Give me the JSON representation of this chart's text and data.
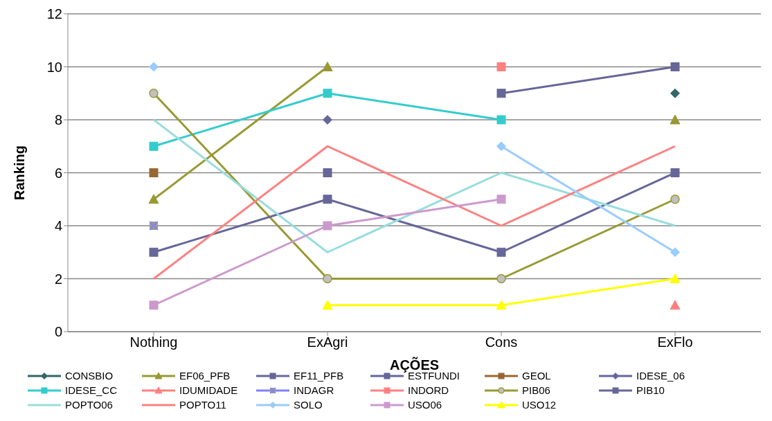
{
  "chart_data": {
    "type": "line",
    "xlabel": "AÇÕES",
    "ylabel": "Ranking",
    "categories": [
      "Nothing",
      "ExAgri",
      "Cons",
      "ExFlo"
    ],
    "ylim": [
      0,
      12
    ],
    "yticks": [
      0,
      2,
      4,
      6,
      8,
      10,
      12
    ],
    "grid": "y",
    "legend": "bottom",
    "line_style": "solid",
    "series": [
      {
        "name": "CONSBIO",
        "color": "#336666",
        "marker": "diamond",
        "values": [
          null,
          null,
          null,
          9
        ]
      },
      {
        "name": "EF06_PFB",
        "color": "#999933",
        "marker": "triangle",
        "values": [
          5,
          10,
          null,
          8
        ]
      },
      {
        "name": "EF11_PFB",
        "color": "#666699",
        "marker": "square",
        "values": [
          null,
          6,
          null,
          null
        ]
      },
      {
        "name": "ESTFUNDI",
        "color": "#666699",
        "marker": "square",
        "values": [
          null,
          null,
          9,
          10
        ]
      },
      {
        "name": "GEOL",
        "color": "#996633",
        "marker": "square",
        "values": [
          6,
          null,
          null,
          null
        ]
      },
      {
        "name": "IDESE_06",
        "color": "#666699",
        "marker": "diamond",
        "values": [
          null,
          8,
          null,
          null
        ]
      },
      {
        "name": "IDESE_CC",
        "color": "#33cccc",
        "marker": "square",
        "values": [
          7,
          9,
          8,
          null
        ]
      },
      {
        "name": "IDUMIDADE",
        "color": "#ff8080",
        "marker": "triangle",
        "values": [
          null,
          null,
          null,
          1
        ]
      },
      {
        "name": "INDAGR",
        "color": "#8080ff",
        "marker": "cross",
        "values": [
          4,
          null,
          null,
          null
        ]
      },
      {
        "name": "INDORD",
        "color": "#ff8080",
        "marker": "square",
        "values": [
          null,
          null,
          10,
          null
        ]
      },
      {
        "name": "PIB06",
        "color": "#999933",
        "marker": "circle",
        "values": [
          9,
          2,
          2,
          5
        ]
      },
      {
        "name": "PIB10",
        "color": "#666699",
        "marker": "square",
        "values": [
          3,
          5,
          3,
          6
        ]
      },
      {
        "name": "POPTO06",
        "color": "#99dddd",
        "marker": "none",
        "values": [
          8,
          3,
          6,
          4
        ]
      },
      {
        "name": "POPTO11",
        "color": "#ff8080",
        "marker": "none",
        "values": [
          2,
          7,
          4,
          7
        ]
      },
      {
        "name": "SOLO",
        "color": "#99ccff",
        "marker": "diamond",
        "values": [
          10,
          null,
          7,
          3
        ]
      },
      {
        "name": "USO06",
        "color": "#cc99cc",
        "marker": "square",
        "values": [
          1,
          4,
          5,
          null
        ]
      },
      {
        "name": "USO12",
        "color": "#ffff00",
        "marker": "triangle",
        "values": [
          null,
          1,
          1,
          2
        ]
      }
    ]
  }
}
